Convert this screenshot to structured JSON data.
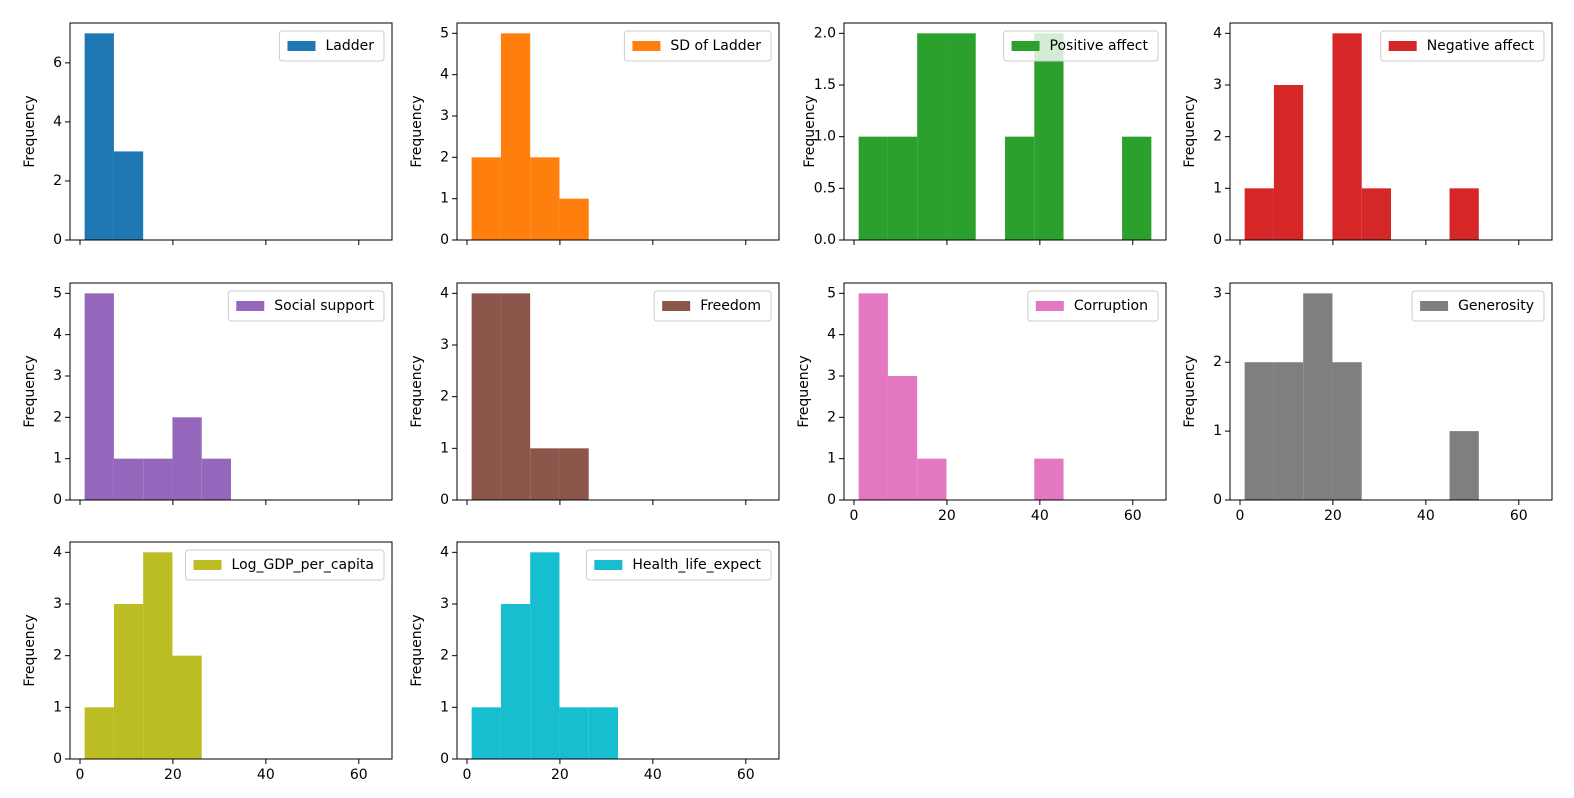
{
  "chart_data": [
    {
      "type": "histogram",
      "ylabel": "Frequency",
      "legend": "upper right",
      "bins": [
        1,
        7.3,
        13.6,
        19.9,
        26.2,
        32.5,
        38.8,
        45.1,
        51.4,
        57.7,
        64
      ],
      "xlim": [
        -2.15,
        67.15
      ],
      "xticks": [
        0,
        20,
        40,
        60
      ],
      "ylim": [
        0,
        7.35
      ],
      "yticks": [
        0,
        2,
        4,
        6
      ],
      "series": [
        {
          "name": "Ladder",
          "color": "#1f77b4",
          "values": [
            7,
            3,
            0,
            0,
            0,
            0,
            0,
            0,
            0,
            0
          ]
        }
      ]
    },
    {
      "type": "histogram",
      "ylabel": "Frequency",
      "legend": "upper right",
      "bins": [
        1,
        7.3,
        13.6,
        19.9,
        26.2,
        32.5,
        38.8,
        45.1,
        51.4,
        57.7,
        64
      ],
      "xlim": [
        -2.15,
        67.15
      ],
      "xticks": [
        0,
        20,
        40,
        60
      ],
      "ylim": [
        0,
        5.25
      ],
      "yticks": [
        0,
        1,
        2,
        3,
        4,
        5
      ],
      "series": [
        {
          "name": "SD of Ladder",
          "color": "#ff7f0e",
          "values": [
            2,
            5,
            2,
            1,
            0,
            0,
            0,
            0,
            0,
            0
          ]
        }
      ]
    },
    {
      "type": "histogram",
      "ylabel": "Frequency",
      "legend": "upper right",
      "bins": [
        1,
        7.3,
        13.6,
        19.9,
        26.2,
        32.5,
        38.8,
        45.1,
        51.4,
        57.7,
        64
      ],
      "xlim": [
        -2.15,
        67.15
      ],
      "xticks": [
        0,
        20,
        40,
        60
      ],
      "ylim": [
        0,
        2.1
      ],
      "yticks": [
        {
          "value": 0,
          "label": "0.0"
        },
        0.5,
        {
          "value": 1,
          "label": "1.0"
        },
        1.5,
        {
          "value": 2,
          "label": "2.0"
        }
      ],
      "series": [
        {
          "name": "Positive affect",
          "color": "#2ca02c",
          "values": [
            1,
            1,
            2,
            2,
            0,
            1,
            2,
            0,
            0,
            1
          ]
        }
      ]
    },
    {
      "type": "histogram",
      "ylabel": "Frequency",
      "legend": "upper right",
      "bins": [
        1,
        7.3,
        13.6,
        19.9,
        26.2,
        32.5,
        38.8,
        45.1,
        51.4,
        57.7,
        64
      ],
      "xlim": [
        -2.15,
        67.15
      ],
      "xticks": [
        0,
        20,
        40,
        60
      ],
      "ylim": [
        0,
        4.2
      ],
      "yticks": [
        0,
        1,
        2,
        3,
        4
      ],
      "series": [
        {
          "name": "Negative affect",
          "color": "#d62728",
          "values": [
            1,
            3,
            0,
            4,
            1,
            0,
            0,
            1,
            0,
            0
          ]
        }
      ]
    },
    {
      "type": "histogram",
      "ylabel": "Frequency",
      "legend": "upper right",
      "bins": [
        1,
        7.3,
        13.6,
        19.9,
        26.2,
        32.5,
        38.8,
        45.1,
        51.4,
        57.7,
        64
      ],
      "xlim": [
        -2.15,
        67.15
      ],
      "xticks": [
        0,
        20,
        40,
        60
      ],
      "ylim": [
        0,
        5.25
      ],
      "yticks": [
        0,
        1,
        2,
        3,
        4,
        5
      ],
      "series": [
        {
          "name": "Social support",
          "color": "#9467bd",
          "values": [
            5,
            1,
            1,
            2,
            1,
            0,
            0,
            0,
            0,
            0
          ]
        }
      ]
    },
    {
      "type": "histogram",
      "ylabel": "Frequency",
      "legend": "upper right",
      "bins": [
        1,
        7.3,
        13.6,
        19.9,
        26.2,
        32.5,
        38.8,
        45.1,
        51.4,
        57.7,
        64
      ],
      "xlim": [
        -2.15,
        67.15
      ],
      "xticks": [
        0,
        20,
        40,
        60
      ],
      "ylim": [
        0,
        4.2
      ],
      "yticks": [
        0,
        1,
        2,
        3,
        4
      ],
      "series": [
        {
          "name": "Freedom",
          "color": "#8c564b",
          "values": [
            4,
            4,
            1,
            1,
            0,
            0,
            0,
            0,
            0,
            0
          ]
        }
      ]
    },
    {
      "type": "histogram",
      "ylabel": "Frequency",
      "legend": "upper right",
      "bins": [
        1,
        7.3,
        13.6,
        19.9,
        26.2,
        32.5,
        38.8,
        45.1,
        51.4,
        57.7,
        64
      ],
      "xlim": [
        -2.15,
        67.15
      ],
      "xticks": [
        0,
        20,
        40,
        60
      ],
      "ylim": [
        0,
        5.25
      ],
      "yticks": [
        0,
        1,
        2,
        3,
        4,
        5
      ],
      "series": [
        {
          "name": "Corruption",
          "color": "#e377c2",
          "values": [
            5,
            3,
            1,
            0,
            0,
            0,
            1,
            0,
            0,
            0
          ]
        }
      ]
    },
    {
      "type": "histogram",
      "ylabel": "Frequency",
      "legend": "upper right",
      "bins": [
        1,
        7.3,
        13.6,
        19.9,
        26.2,
        32.5,
        38.8,
        45.1,
        51.4,
        57.7,
        64
      ],
      "xlim": [
        -2.15,
        67.15
      ],
      "xticks": [
        0,
        20,
        40,
        60
      ],
      "ylim": [
        0,
        3.15
      ],
      "yticks": [
        0,
        1,
        2,
        3
      ],
      "series": [
        {
          "name": "Generosity",
          "color": "#7f7f7f",
          "values": [
            2,
            2,
            3,
            2,
            0,
            0,
            0,
            1,
            0,
            0
          ]
        }
      ]
    },
    {
      "type": "histogram",
      "ylabel": "Frequency",
      "legend": "upper right",
      "bins": [
        1,
        7.3,
        13.6,
        19.9,
        26.2,
        32.5,
        38.8,
        45.1,
        51.4,
        57.7,
        64
      ],
      "xlim": [
        -2.15,
        67.15
      ],
      "xticks": [
        0,
        20,
        40,
        60
      ],
      "ylim": [
        0,
        4.2
      ],
      "yticks": [
        0,
        1,
        2,
        3,
        4
      ],
      "series": [
        {
          "name": "Log_GDP_per_capita",
          "color": "#bcbd22",
          "values": [
            1,
            3,
            4,
            2,
            0,
            0,
            0,
            0,
            0,
            0
          ]
        }
      ]
    },
    {
      "type": "histogram",
      "ylabel": "Frequency",
      "legend": "upper right",
      "bins": [
        1,
        7.3,
        13.6,
        19.9,
        26.2,
        32.5,
        38.8,
        45.1,
        51.4,
        57.7,
        64
      ],
      "xlim": [
        -2.15,
        67.15
      ],
      "xticks": [
        0,
        20,
        40,
        60
      ],
      "ylim": [
        0,
        4.2
      ],
      "yticks": [
        0,
        1,
        2,
        3,
        4
      ],
      "series": [
        {
          "name": "Health_life_expect",
          "color": "#17becf",
          "values": [
            1,
            3,
            4,
            1,
            1,
            0,
            0,
            0,
            0,
            0
          ]
        }
      ]
    }
  ]
}
